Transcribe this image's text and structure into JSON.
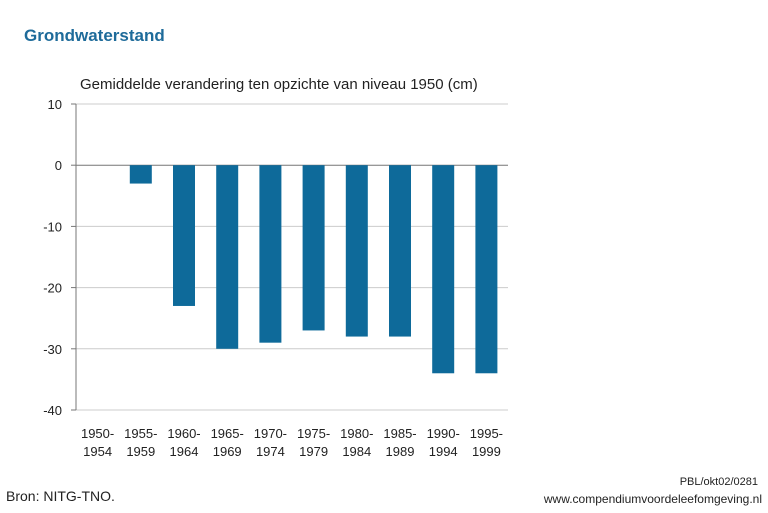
{
  "header": {
    "title": "Grondwaterstand",
    "subtitle": "Gemiddelde verandering ten opzichte van niveau 1950 (cm)"
  },
  "footer": {
    "source": "Bron: NITG-TNO.",
    "reference": "PBL/okt02/0281",
    "url": "www.compendiumvoordeleefomgeving.nl"
  },
  "colors": {
    "bar": "#0e6a9a",
    "grid": "#cccccc",
    "axis": "#777777"
  },
  "chart_data": {
    "type": "bar",
    "title": "Grondwaterstand",
    "subtitle": "Gemiddelde verandering ten opzichte van niveau 1950 (cm)",
    "categories": [
      [
        "1950-",
        "1954"
      ],
      [
        "1955-",
        "1959"
      ],
      [
        "1960-",
        "1964"
      ],
      [
        "1965-",
        "1969"
      ],
      [
        "1970-",
        "1974"
      ],
      [
        "1975-",
        "1979"
      ],
      [
        "1980-",
        "1984"
      ],
      [
        "1985-",
        "1989"
      ],
      [
        "1990-",
        "1994"
      ],
      [
        "1995-",
        "1999"
      ]
    ],
    "values": [
      0,
      -3,
      -23,
      -30,
      -29,
      -27,
      -28,
      -28,
      -34,
      -34
    ],
    "ylim": [
      -40,
      10
    ],
    "yticks": [
      10,
      0,
      -10,
      -20,
      -30,
      -40
    ],
    "grid": true,
    "legend": "none"
  }
}
